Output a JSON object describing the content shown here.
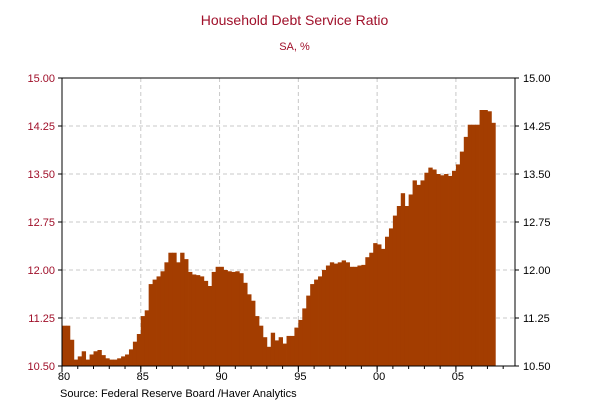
{
  "chart_data": {
    "type": "bar",
    "title": "Household Debt Service Ratio",
    "subtitle": "SA, %",
    "source": "Source:  Federal Reserve Board /Haver Analytics",
    "ylim": [
      10.5,
      15.0
    ],
    "yticks": [
      "10.50",
      "11.25",
      "12.00",
      "12.75",
      "13.50",
      "14.25",
      "15.00"
    ],
    "xticks": [
      {
        "label": "80",
        "year": 1980
      },
      {
        "label": "85",
        "year": 1985
      },
      {
        "label": "90",
        "year": 1990
      },
      {
        "label": "95",
        "year": 1995
      },
      {
        "label": "00",
        "year": 2000
      },
      {
        "label": "05",
        "year": 2005
      }
    ],
    "x_start": 1980.0,
    "x_end": 2008.75,
    "series": [
      {
        "color": "#a33d00",
        "start": "1980-Q1",
        "frequency": "quarterly",
        "values": [
          11.13,
          11.13,
          10.91,
          10.6,
          10.65,
          10.73,
          10.6,
          10.68,
          10.73,
          10.75,
          10.67,
          10.62,
          10.6,
          10.6,
          10.62,
          10.65,
          10.68,
          10.76,
          10.88,
          11.0,
          11.28,
          11.37,
          11.78,
          11.85,
          11.9,
          11.98,
          12.12,
          12.27,
          12.27,
          12.12,
          12.27,
          12.17,
          11.97,
          11.93,
          11.92,
          11.9,
          11.83,
          11.75,
          11.97,
          12.05,
          12.05,
          12.0,
          11.98,
          11.97,
          11.98,
          11.95,
          11.8,
          11.62,
          11.52,
          11.28,
          11.13,
          10.95,
          10.8,
          11.02,
          10.9,
          10.95,
          10.85,
          10.97,
          10.97,
          11.1,
          11.22,
          11.4,
          11.6,
          11.78,
          11.85,
          11.9,
          12.0,
          12.07,
          12.12,
          12.1,
          12.12,
          12.15,
          12.12,
          12.05,
          12.05,
          12.07,
          12.08,
          12.2,
          12.27,
          12.42,
          12.4,
          12.33,
          12.52,
          12.65,
          12.85,
          13.0,
          13.2,
          13.0,
          13.18,
          13.4,
          13.33,
          13.4,
          13.52,
          13.6,
          13.57,
          13.5,
          13.48,
          13.5,
          13.47,
          13.55,
          13.65,
          13.85,
          14.08,
          14.27,
          14.27,
          14.27,
          14.5,
          14.5,
          14.48,
          14.3
        ]
      }
    ]
  }
}
